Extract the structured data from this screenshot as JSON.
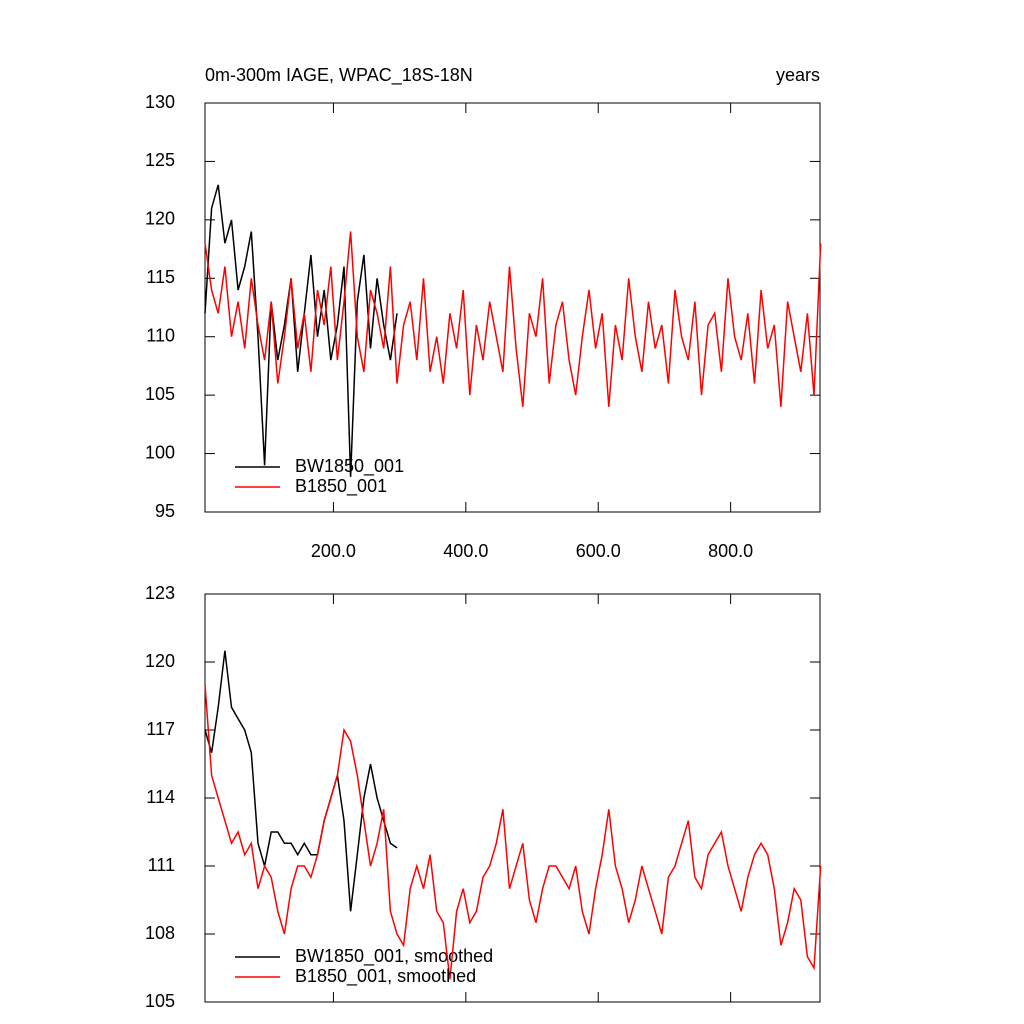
{
  "chart_data": [
    {
      "type": "line",
      "title": "0m-300m IAGE, WPAC_18S-18N",
      "units": "years",
      "xlim": [
        6,
        935
      ],
      "ylim": [
        95,
        130
      ],
      "xticks": [
        {
          "value": 200,
          "label": "200.0"
        },
        {
          "value": 400,
          "label": "400.0"
        },
        {
          "value": 600,
          "label": "600.0"
        },
        {
          "value": 800,
          "label": "800.0"
        }
      ],
      "yticks": [
        95,
        100,
        105,
        110,
        115,
        120,
        125,
        130
      ],
      "series": [
        {
          "name": "BW1850_001",
          "color": "#000000",
          "x": [
            6,
            16,
            26,
            36,
            46,
            56,
            66,
            76,
            86,
            96,
            106,
            116,
            126,
            136,
            146,
            156,
            166,
            176,
            186,
            196,
            206,
            216,
            226,
            236,
            246,
            256,
            266,
            276,
            286,
            296
          ],
          "values": [
            112,
            121,
            123,
            118,
            120,
            114,
            116,
            119,
            110,
            99,
            113,
            108,
            111,
            115,
            107,
            112,
            117,
            110,
            114,
            108,
            111,
            116,
            98,
            113,
            117,
            109,
            115,
            111,
            108,
            112
          ]
        },
        {
          "name": "B1850_001",
          "color": "#ff0000",
          "x": [
            6,
            16,
            26,
            36,
            46,
            56,
            66,
            76,
            86,
            96,
            106,
            116,
            126,
            136,
            146,
            156,
            166,
            176,
            186,
            196,
            206,
            216,
            226,
            236,
            246,
            256,
            266,
            276,
            286,
            296,
            306,
            316,
            326,
            336,
            346,
            356,
            366,
            376,
            386,
            396,
            406,
            416,
            426,
            436,
            446,
            456,
            466,
            476,
            486,
            496,
            506,
            516,
            526,
            536,
            546,
            556,
            566,
            576,
            586,
            596,
            606,
            616,
            626,
            636,
            646,
            656,
            666,
            676,
            686,
            696,
            706,
            716,
            726,
            736,
            746,
            756,
            766,
            776,
            786,
            796,
            806,
            816,
            826,
            836,
            846,
            856,
            866,
            876,
            886,
            896,
            906,
            916,
            926,
            936
          ],
          "values": [
            118,
            114,
            112,
            116,
            110,
            113,
            109,
            115,
            111,
            108,
            113,
            106,
            110,
            115,
            109,
            112,
            107,
            114,
            111,
            116,
            108,
            113,
            119,
            110,
            107,
            114,
            112,
            109,
            116,
            106,
            111,
            113,
            108,
            115,
            107,
            110,
            106,
            112,
            109,
            114,
            105,
            111,
            108,
            113,
            110,
            107,
            116,
            109,
            104,
            112,
            110,
            115,
            106,
            111,
            113,
            108,
            105,
            110,
            114,
            109,
            112,
            104,
            111,
            108,
            115,
            110,
            107,
            113,
            109,
            111,
            106,
            114,
            110,
            108,
            113,
            105,
            111,
            112,
            107,
            115,
            110,
            108,
            112,
            106,
            114,
            109,
            111,
            104,
            113,
            110,
            107,
            112,
            105,
            118
          ]
        }
      ]
    },
    {
      "type": "line",
      "xlim": [
        6,
        935
      ],
      "ylim": [
        105,
        123
      ],
      "xticks": [
        200,
        400,
        600,
        800
      ],
      "yticks": [
        105,
        108,
        111,
        114,
        117,
        120,
        123
      ],
      "series": [
        {
          "name": "BW1850_001, smoothed",
          "color": "#000000",
          "x": [
            6,
            16,
            26,
            36,
            46,
            56,
            66,
            76,
            86,
            96,
            106,
            116,
            126,
            136,
            146,
            156,
            166,
            176,
            186,
            196,
            206,
            216,
            226,
            236,
            246,
            256,
            266,
            276,
            286,
            296
          ],
          "values": [
            117,
            116,
            118,
            120.5,
            118,
            117.5,
            117,
            116,
            112,
            111,
            112.5,
            112.5,
            112,
            112,
            111.5,
            112,
            111.5,
            111.5,
            113,
            114,
            115,
            113,
            109,
            111.5,
            114,
            115.5,
            114,
            113,
            112,
            111.8
          ]
        },
        {
          "name": "B1850_001, smoothed",
          "color": "#ff0000",
          "x": [
            6,
            16,
            26,
            36,
            46,
            56,
            66,
            76,
            86,
            96,
            106,
            116,
            126,
            136,
            146,
            156,
            166,
            176,
            186,
            196,
            206,
            216,
            226,
            236,
            246,
            256,
            266,
            276,
            286,
            296,
            306,
            316,
            326,
            336,
            346,
            356,
            366,
            376,
            386,
            396,
            406,
            416,
            426,
            436,
            446,
            456,
            466,
            476,
            486,
            496,
            506,
            516,
            526,
            536,
            546,
            556,
            566,
            576,
            586,
            596,
            606,
            616,
            626,
            636,
            646,
            656,
            666,
            676,
            686,
            696,
            706,
            716,
            726,
            736,
            746,
            756,
            766,
            776,
            786,
            796,
            806,
            816,
            826,
            836,
            846,
            856,
            866,
            876,
            886,
            896,
            906,
            916,
            926,
            936
          ],
          "values": [
            119,
            115,
            114,
            113,
            112,
            112.5,
            111.5,
            112,
            110,
            111,
            110.5,
            109,
            108,
            110,
            111,
            111,
            110.5,
            111.5,
            113,
            114,
            115,
            117,
            116.5,
            115,
            113,
            111,
            112,
            113.5,
            109,
            108,
            107.5,
            110,
            111,
            110,
            111.5,
            109,
            108.5,
            106,
            109,
            110,
            108.5,
            109,
            110.5,
            111,
            112,
            113.5,
            110,
            111,
            112,
            109.5,
            108.5,
            110,
            111,
            111,
            110.5,
            110,
            111,
            109,
            108,
            110,
            111.5,
            113.5,
            111,
            110,
            108.5,
            109.5,
            111,
            110,
            109,
            108,
            110.5,
            111,
            112,
            113,
            110.5,
            110,
            111.5,
            112,
            112.5,
            111,
            110,
            109,
            110.5,
            111.5,
            112,
            111.5,
            110,
            107.5,
            108.5,
            110,
            109.5,
            107,
            106.5,
            111
          ]
        }
      ]
    }
  ]
}
